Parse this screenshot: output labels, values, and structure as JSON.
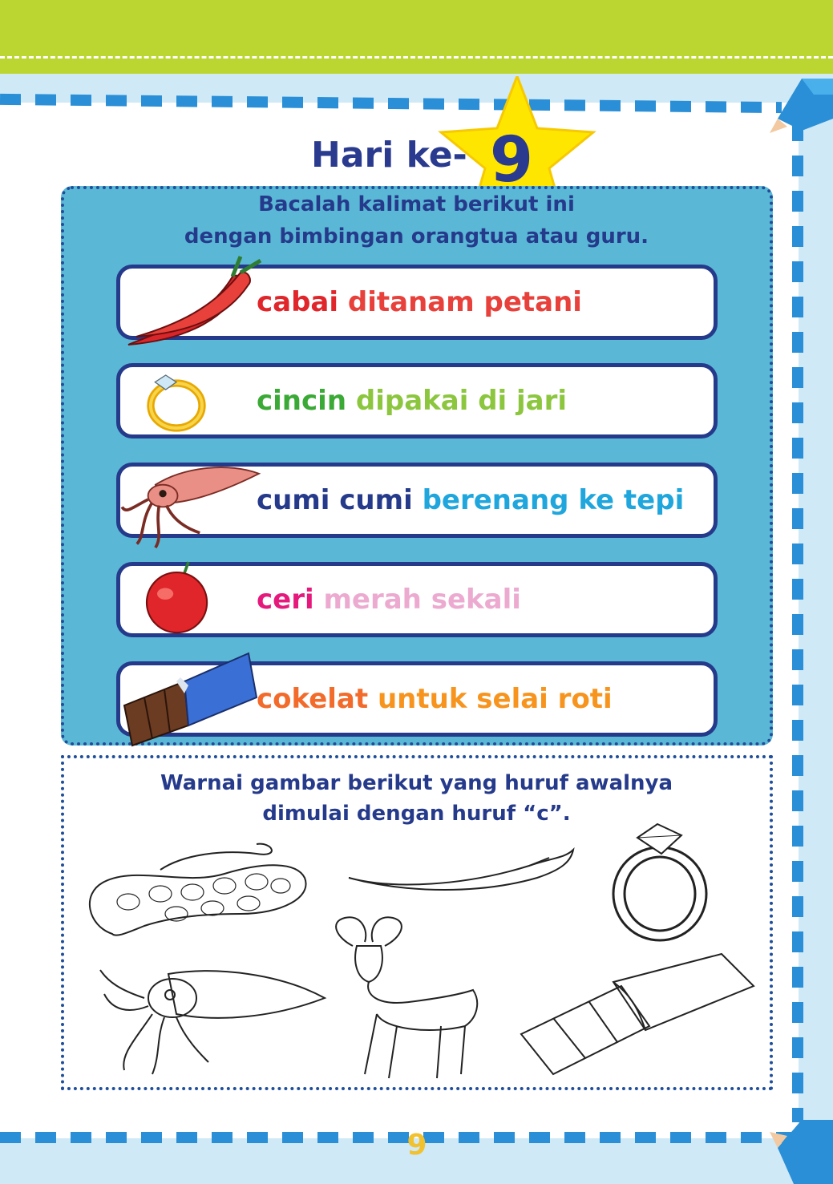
{
  "header": {
    "title_prefix": "Hari ke-",
    "day_number": "9"
  },
  "reading": {
    "instruction_line1": "Bacalah kalimat berikut ini",
    "instruction_line2": "dengan bimbingan orangtua atau guru.",
    "rows": [
      {
        "keyword": "cabai",
        "rest": "ditanam petani",
        "icon": "chili-icon",
        "keyword_color": "#e0262b",
        "rest_color": "#e8403a"
      },
      {
        "keyword": "cincin",
        "rest": "dipakai di jari",
        "icon": "ring-icon",
        "keyword_color": "#3aa935",
        "rest_color": "#8cc63e"
      },
      {
        "keyword": "cumi cumi",
        "rest": "berenang ke tepi",
        "icon": "squid-icon",
        "keyword_color": "#253a8b",
        "rest_color": "#1fa6dd"
      },
      {
        "keyword": "ceri",
        "rest": "merah sekali",
        "icon": "cherry-icon",
        "keyword_color": "#e5197c",
        "rest_color": "#ecaad0"
      },
      {
        "keyword": "cokelat",
        "rest": "untuk selai roti",
        "icon": "chocolate-icon",
        "keyword_color": "#f26b2b",
        "rest_color": "#f7941e"
      }
    ]
  },
  "coloring": {
    "instruction_line1": "Warnai gambar berikut yang huruf awalnya",
    "instruction_line2": "dimulai dengan huruf “c”.",
    "pictures": [
      "snake-outline",
      "chili-outline",
      "ring-outline",
      "squid-outline",
      "ram-outline",
      "chocolate-outline"
    ]
  },
  "footer": {
    "page_number": "9"
  },
  "colors": {
    "top_band": "#bcd631",
    "border_dash": "#2a8fd6",
    "panel": "#5ab8d6",
    "title": "#2a3b8f",
    "star": "#ffe600"
  }
}
